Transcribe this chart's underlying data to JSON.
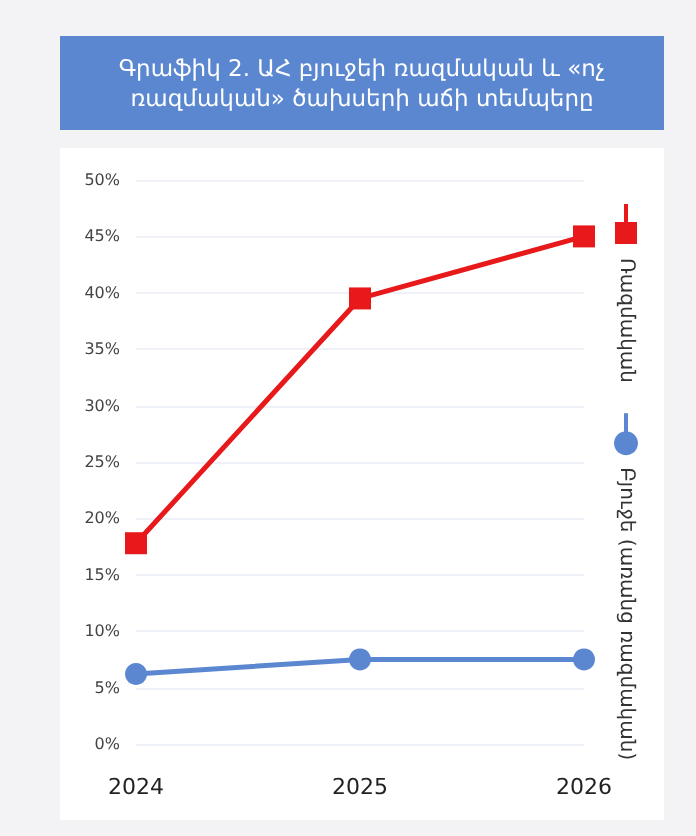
{
  "chart_data": {
    "type": "line",
    "title": "Գրաֆիկ 2. ԱՀ բյուջեի ռազմական և «ոչ ռազմական» ծախսերի աճի տեմպերը",
    "categories": [
      "2024",
      "2025",
      "2026"
    ],
    "series": [
      {
        "name": "Ռազմական",
        "color": "#e8191a",
        "marker": "square",
        "values": [
          17.8,
          39.5,
          45
        ]
      },
      {
        "name": "Բյուջե (առանց ռազմական)",
        "color": "#5b87d1",
        "marker": "circle",
        "values": [
          6.2,
          7.5,
          7.5
        ]
      }
    ],
    "ylim": [
      0,
      50
    ],
    "yticks": [
      {
        "value": 0,
        "label": "0%"
      },
      {
        "value": 5,
        "label": "5%"
      },
      {
        "value": 10,
        "label": "10%"
      },
      {
        "value": 15,
        "label": "15%"
      },
      {
        "value": 20,
        "label": "20%"
      },
      {
        "value": 25,
        "label": "25%"
      },
      {
        "value": 30,
        "label": "30%"
      },
      {
        "value": 35,
        "label": "35%"
      },
      {
        "value": 40,
        "label": "40%"
      },
      {
        "value": 45,
        "label": "45%"
      },
      {
        "value": 50,
        "label": "50%"
      }
    ],
    "grid": "y",
    "legend": "right",
    "line_style": "solid"
  }
}
